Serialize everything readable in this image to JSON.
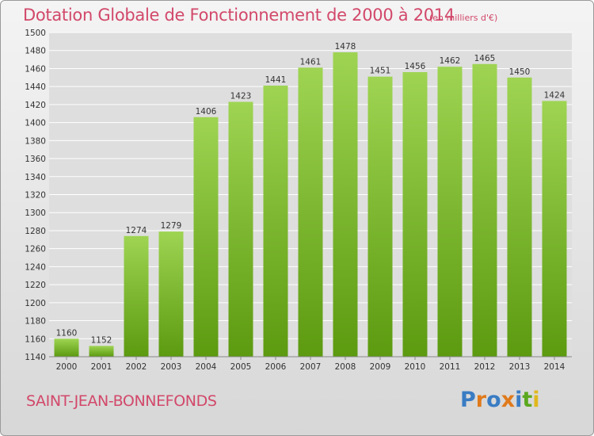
{
  "header": {
    "title": "Dotation Globale de Fonctionnement de 2000 à 2014",
    "subtitle": "(en milliers d'€)"
  },
  "footer": {
    "commune": "SAINT-JEAN-BONNEFONDS",
    "logo": "Proxiti"
  },
  "colors": {
    "title": "#d2486a",
    "bar_top": "#9ed452",
    "bar_bottom": "#5c9a10",
    "grid": "#ffffff",
    "plot_bg": "#dedede",
    "logo_letters": [
      "#3a7cc4",
      "#e07a1c",
      "#3a7cc4",
      "#e07a1c",
      "#3a7cc4",
      "#5aa81e",
      "#e0b81c"
    ]
  },
  "chart_data": {
    "type": "bar",
    "title": "Dotation Globale de Fonctionnement de 2000 à 2014",
    "subtitle": "(en milliers d'€)",
    "xlabel": "",
    "ylabel": "",
    "categories": [
      "2000",
      "2001",
      "2002",
      "2003",
      "2004",
      "2005",
      "2006",
      "2007",
      "2008",
      "2009",
      "2010",
      "2011",
      "2012",
      "2013",
      "2014"
    ],
    "values": [
      1160,
      1152,
      1274,
      1279,
      1406,
      1423,
      1441,
      1461,
      1478,
      1451,
      1456,
      1462,
      1465,
      1450,
      1424
    ],
    "ylim": [
      1140,
      1500
    ],
    "ytick_step": 20,
    "grid": true,
    "legend": "none"
  }
}
